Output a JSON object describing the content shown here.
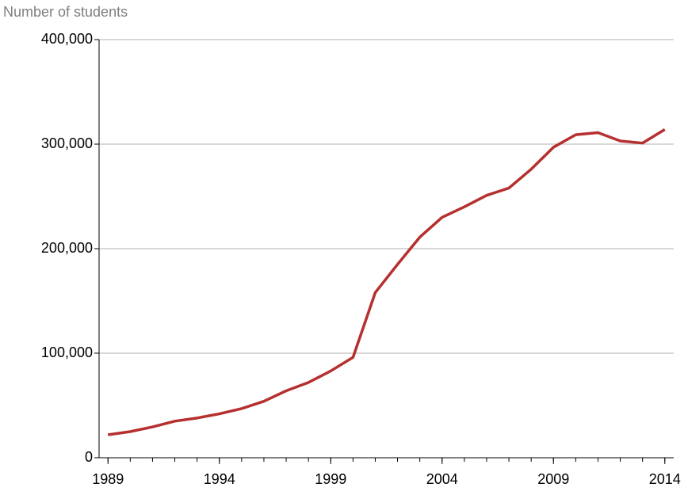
{
  "chart_data": {
    "type": "line",
    "y_axis_label": "Number of students",
    "x": [
      1989,
      1990,
      1991,
      1992,
      1993,
      1994,
      1995,
      1996,
      1997,
      1998,
      1999,
      2000,
      2001,
      2002,
      2003,
      2004,
      2005,
      2006,
      2007,
      2008,
      2009,
      2010,
      2011,
      2012,
      2013,
      2014
    ],
    "series": [
      {
        "name": "Number of students",
        "color": "#b5302f",
        "values": [
          22000,
          25000,
          29500,
          35000,
          38000,
          42000,
          47000,
          54000,
          64000,
          72000,
          83000,
          96000,
          158000,
          185000,
          211000,
          230000,
          240000,
          251000,
          258000,
          276000,
          297000,
          309000,
          311000,
          303000,
          301000,
          314000
        ]
      }
    ],
    "xlim": [
      1988.6,
      2014.4
    ],
    "xticks": [
      1989,
      1994,
      1999,
      2004,
      2009,
      2014
    ],
    "ylim": [
      0,
      400000
    ],
    "yticks": [
      0,
      {
        "value": 100000,
        "label": "100,000"
      },
      {
        "value": 200000,
        "label": "200,000"
      },
      {
        "value": 300000,
        "label": "300,000"
      },
      {
        "value": 400000,
        "label": "400,000"
      }
    ],
    "grid": true
  }
}
